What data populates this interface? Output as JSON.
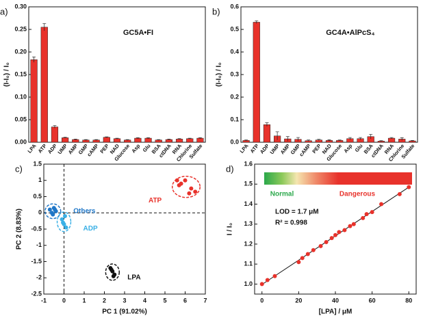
{
  "chart_data": [
    {
      "type": "bar",
      "panel": "a)",
      "title": "GC5A•FI",
      "ylabel": "(I-I₀) / I₀",
      "color": "#e8322b",
      "categories": [
        "LPA",
        "ATP",
        "ADP",
        "UMP",
        "AMP",
        "GMP",
        "cAMP",
        "PEP",
        "NAD",
        "Glucose",
        "Asp",
        "Glu",
        "BSA",
        "ctDNA",
        "RNA",
        "Chlorine",
        "Sulfate"
      ],
      "values": [
        0.183,
        0.255,
        0.034,
        0.01,
        0.006,
        0.005,
        0.005,
        0.011,
        0.008,
        0.005,
        0.009,
        0.009,
        0.005,
        0.006,
        0.007,
        0.008,
        0.009
      ],
      "errors": [
        0.006,
        0.008,
        0.003,
        0.001,
        0.001,
        0.001,
        0.001,
        0.001,
        0.001,
        0.001,
        0.001,
        0.001,
        0.001,
        0.001,
        0.001,
        0.001,
        0.001
      ],
      "ylim": [
        0,
        0.3
      ],
      "yticks": [
        {
          "value": 0,
          "label": "0.00"
        },
        {
          "value": 0.05,
          "label": "0.05"
        },
        {
          "value": 0.1,
          "label": "0.10"
        },
        {
          "value": 0.15,
          "label": "0.15"
        },
        {
          "value": 0.2,
          "label": "0.20"
        },
        {
          "value": 0.25,
          "label": "0.25"
        },
        {
          "value": 0.3,
          "label": "0.30"
        }
      ]
    },
    {
      "type": "bar",
      "panel": "b)",
      "title": "GC4A•AlPcS₄",
      "ylabel": "(I-I₀) / I₀",
      "color": "#e8322b",
      "categories": [
        "LPA",
        "ATP",
        "ADP",
        "UMP",
        "AMP",
        "GMP",
        "cAMP",
        "PEP",
        "NAD",
        "Glucose",
        "Asp",
        "Glu",
        "BSA",
        "ctDNA",
        "RNA",
        "Chlorine",
        "Sulfate"
      ],
      "values": [
        0.008,
        0.532,
        0.078,
        0.028,
        0.015,
        0.013,
        0.007,
        0.01,
        0.008,
        0.008,
        0.016,
        0.016,
        0.025,
        0.005,
        0.018,
        0.014,
        0.006
      ],
      "errors": [
        0.002,
        0.006,
        0.008,
        0.018,
        0.01,
        0.008,
        0.003,
        0.003,
        0.003,
        0.002,
        0.005,
        0.005,
        0.01,
        0.002,
        0.003,
        0.006,
        0.002
      ],
      "ylim": [
        0,
        0.6
      ],
      "yticks": [
        {
          "value": 0,
          "label": "0.0"
        },
        {
          "value": 0.1,
          "label": "0.1"
        },
        {
          "value": 0.2,
          "label": "0.2"
        },
        {
          "value": 0.3,
          "label": "0.3"
        },
        {
          "value": 0.4,
          "label": "0.4"
        },
        {
          "value": 0.5,
          "label": "0.5"
        },
        {
          "value": 0.6,
          "label": "0.6"
        }
      ]
    },
    {
      "type": "scatter",
      "panel": "c)",
      "xlabel": "PC 1 (91.02%)",
      "ylabel": "PC 2 (8.83%)",
      "ellipses": true,
      "zero_lines": true,
      "xlim": [
        -1,
        7
      ],
      "xticks": [
        -1,
        0,
        1,
        2,
        3,
        4,
        5,
        6,
        7
      ],
      "ylim": [
        -2.5,
        1.5
      ],
      "yticks": [
        -2.5,
        -2,
        -1.5,
        -1,
        -0.5,
        0,
        0.5,
        1,
        1.5
      ],
      "series": [
        {
          "name": "ATP",
          "color": "#e8322b",
          "x": [
            5.6,
            5.8,
            6.0,
            6.3,
            6.5,
            5.7,
            6.2
          ],
          "y": [
            1.0,
            0.9,
            1.0,
            0.75,
            0.65,
            0.85,
            0.6
          ]
        },
        {
          "name": "Others",
          "color": "#1f77c8",
          "x": [
            -0.7,
            -0.6,
            -0.5,
            -0.4,
            -0.55,
            -0.45
          ],
          "y": [
            0.1,
            0.0,
            0.15,
            0.05,
            -0.05,
            0.1
          ]
        },
        {
          "name": "ADP",
          "color": "#3ab0e6",
          "x": [
            -0.1,
            0.0,
            0.1,
            -0.05,
            0.05
          ],
          "y": [
            -0.2,
            -0.35,
            -0.45,
            -0.3,
            -0.1
          ]
        },
        {
          "name": "LPA",
          "color": "#111111",
          "x": [
            2.3,
            2.4,
            2.5,
            2.35,
            2.45
          ],
          "y": [
            -1.7,
            -1.8,
            -1.9,
            -1.75,
            -1.95
          ]
        }
      ]
    },
    {
      "type": "scatter",
      "panel": "d)",
      "xlabel": "[LPA] / μM",
      "ylabel": "I / I₀",
      "trendline": true,
      "annotations": [
        "LOD = 1.7 μM",
        "R² = 0.998"
      ],
      "colorbar_labels": [
        "Normal",
        "Dangerous"
      ],
      "xlim": [
        -4,
        84
      ],
      "xticks": [
        0,
        20,
        40,
        60,
        80
      ],
      "ylim": [
        0.95,
        1.6
      ],
      "yticks": [
        {
          "value": 1,
          "label": "1.0"
        },
        {
          "value": 1.1,
          "label": "1.1"
        },
        {
          "value": 1.2,
          "label": "1.2"
        },
        {
          "value": 1.3,
          "label": "1.3"
        },
        {
          "value": 1.4,
          "label": "1.4"
        },
        {
          "value": 1.5,
          "label": "1.5"
        },
        {
          "value": 1.6,
          "label": "1.6"
        }
      ],
      "series": [
        {
          "name": "I / I₀",
          "color": "#e8322b",
          "x": [
            0,
            3,
            7,
            20,
            22,
            25,
            28,
            32,
            35,
            38,
            40,
            42,
            45,
            48,
            50,
            55,
            57,
            60,
            65,
            75,
            80
          ],
          "y": [
            1.0,
            1.02,
            1.04,
            1.11,
            1.13,
            1.15,
            1.17,
            1.19,
            1.21,
            1.23,
            1.245,
            1.26,
            1.27,
            1.29,
            1.3,
            1.33,
            1.35,
            1.36,
            1.4,
            1.45,
            1.485
          ]
        }
      ]
    }
  ]
}
